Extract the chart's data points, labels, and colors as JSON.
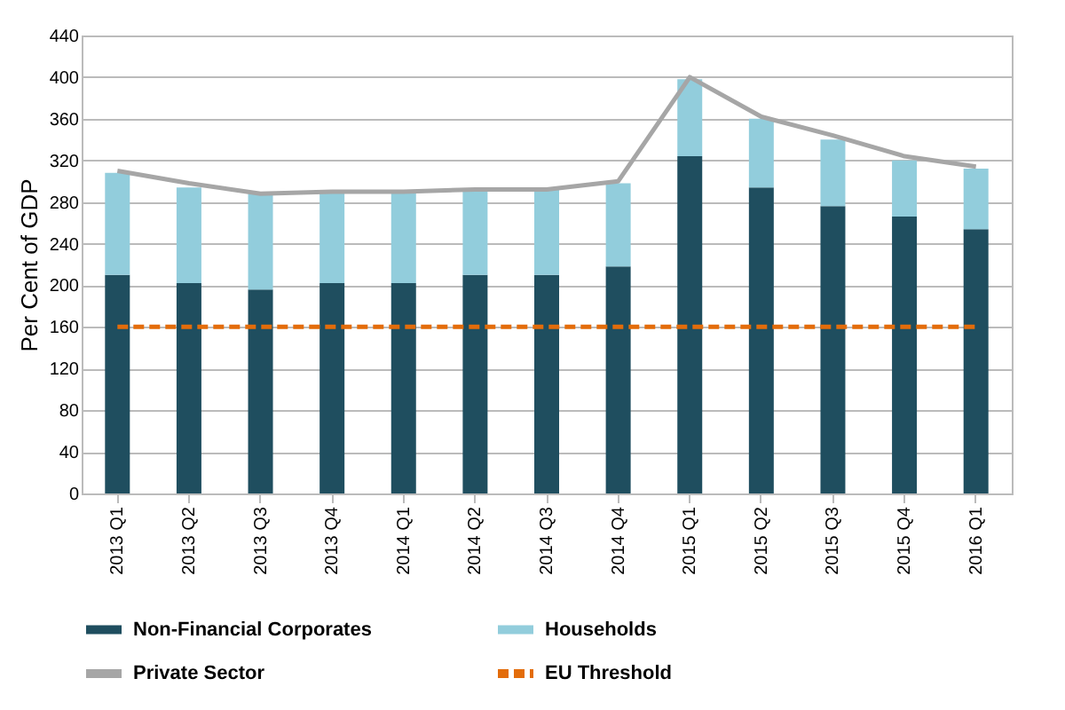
{
  "chart_data": {
    "type": "bar",
    "stacked": true,
    "ylabel": "Per Cent of GDP",
    "categories": [
      "2013 Q1",
      "2013 Q2",
      "2013 Q3",
      "2013 Q4",
      "2014 Q1",
      "2014 Q2",
      "2014 Q3",
      "2014 Q4",
      "2015 Q1",
      "2015 Q2",
      "2015 Q3",
      "2015 Q4",
      "2016 Q1"
    ],
    "series": [
      {
        "name": "Non-Financial Corporates",
        "color": "#1f4e5f",
        "values": [
          210,
          202,
          196,
          202,
          202,
          210,
          210,
          218,
          324,
          294,
          276,
          266,
          254
        ]
      },
      {
        "name": "Households",
        "color": "#92cddc",
        "values": [
          98,
          92,
          92,
          88,
          88,
          82,
          82,
          80,
          74,
          66,
          64,
          54,
          58
        ]
      },
      {
        "name": "Private Sector",
        "type": "line",
        "line_style": "solid",
        "color": "#a6a6a6",
        "values": [
          310,
          298,
          288,
          290,
          290,
          292,
          292,
          300,
          400,
          362,
          344,
          324,
          314
        ]
      },
      {
        "name": "EU Threshold",
        "type": "line",
        "line_style": "dashed",
        "color": "#e36c0a",
        "values": [
          160,
          160,
          160,
          160,
          160,
          160,
          160,
          160,
          160,
          160,
          160,
          160,
          160
        ]
      }
    ],
    "ylim": [
      0,
      440
    ],
    "yticks": [
      0,
      40,
      80,
      120,
      160,
      200,
      240,
      280,
      320,
      360,
      400,
      440
    ],
    "grid": "y",
    "legend": "bottom"
  }
}
